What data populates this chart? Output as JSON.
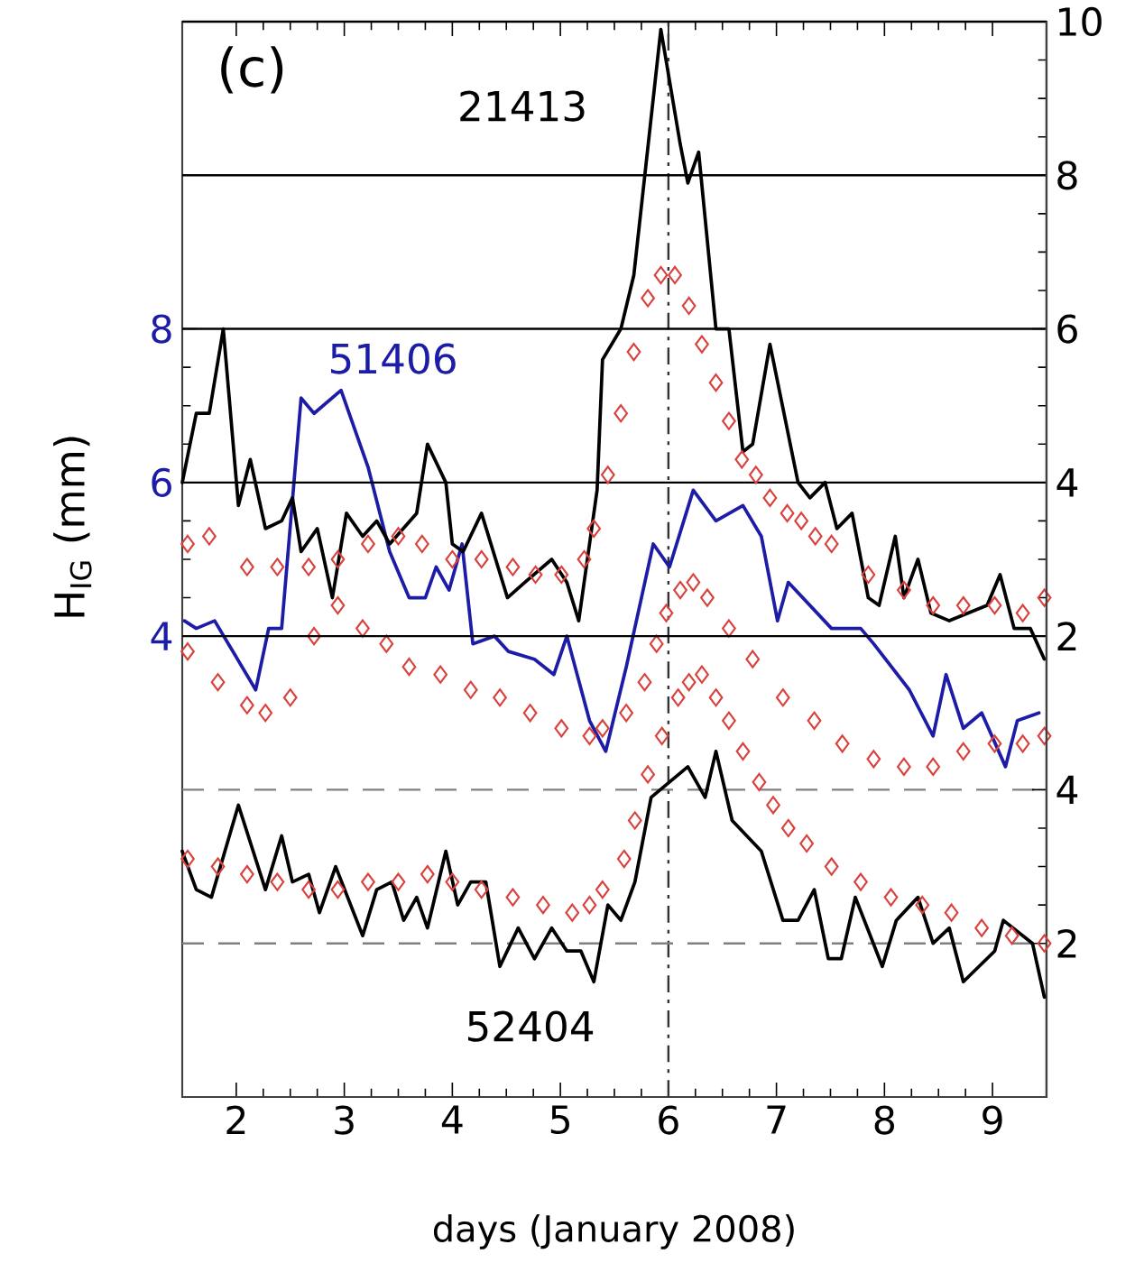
{
  "chart_data": {
    "type": "line",
    "xlabel": "days (January 2008)",
    "ylabel": "H$_{IG}$ (mm)",
    "annotations": [
      "(c)"
    ],
    "xlim": [
      1.5,
      9.5
    ],
    "xticks": [
      2,
      3,
      4,
      5,
      6,
      7,
      8,
      9
    ],
    "ylim": [
      -2,
      12
    ],
    "yticks": [
      4,
      6,
      8
    ],
    "y2lim": [
      -4,
      10
    ],
    "y2ticks": [
      2,
      4,
      6,
      8,
      10
    ],
    "y3lim": [
      0,
      14
    ],
    "y3ticks": [
      2,
      4
    ],
    "grid": "y",
    "ref_lines": [
      {
        "axis": "x",
        "value": 6,
        "color": "#333333",
        "line_style": "dashdot"
      }
    ],
    "series": [
      {
        "type": "scatter",
        "marker": "diamond",
        "axis": "y2",
        "color": "#d9413c",
        "x": [
          1.55,
          1.75,
          2.1,
          2.38,
          2.67,
          2.94,
          3.22,
          3.5,
          3.72,
          4.0,
          4.27,
          4.56,
          4.77,
          5.01,
          5.22,
          5.31,
          5.44,
          5.56,
          5.68,
          5.81,
          5.93,
          6.06,
          6.19,
          6.31,
          6.44,
          6.56,
          6.68,
          6.81,
          6.94,
          7.1,
          7.23,
          7.36,
          7.51,
          7.85,
          8.18,
          8.45,
          8.73,
          9.02,
          9.28,
          9.48
        ],
        "values": [
          3.2,
          3.3,
          2.9,
          2.9,
          2.9,
          3.0,
          3.2,
          3.3,
          3.2,
          3.0,
          3.0,
          2.9,
          2.8,
          2.8,
          3.0,
          3.4,
          4.1,
          4.9,
          5.7,
          6.4,
          6.7,
          6.7,
          6.3,
          5.8,
          5.3,
          4.8,
          4.3,
          4.1,
          3.8,
          3.6,
          3.5,
          3.3,
          3.2,
          2.8,
          2.6,
          2.4,
          2.4,
          2.4,
          2.3,
          2.5
        ]
      },
      {
        "type": "scatter",
        "marker": "diamond",
        "axis": "y",
        "color": "#d9413c",
        "x": [
          1.55,
          1.83,
          2.1,
          2.27,
          2.5,
          2.72,
          2.94,
          3.17,
          3.39,
          3.6,
          3.89,
          4.17,
          4.44,
          4.72,
          5.01,
          5.27,
          5.39,
          5.61,
          5.78,
          5.89,
          5.98,
          6.11,
          6.23,
          6.36,
          6.56,
          6.78,
          7.06,
          7.35,
          7.61,
          7.9,
          8.18,
          8.45,
          8.73,
          9.02,
          9.28,
          9.48
        ],
        "values": [
          3.8,
          3.4,
          3.1,
          3.0,
          3.2,
          4.0,
          4.4,
          4.1,
          3.9,
          3.6,
          3.5,
          3.3,
          3.2,
          3.0,
          2.8,
          2.7,
          2.8,
          3.0,
          3.4,
          3.9,
          4.3,
          4.6,
          4.7,
          4.5,
          4.1,
          3.7,
          3.2,
          2.9,
          2.6,
          2.4,
          2.3,
          2.3,
          2.5,
          2.6,
          2.6,
          2.7
        ]
      },
      {
        "type": "scatter",
        "marker": "diamond",
        "axis": "y3",
        "color": "#d9413c",
        "x": [
          1.55,
          1.83,
          2.1,
          2.38,
          2.67,
          2.94,
          3.22,
          3.5,
          3.77,
          4.0,
          4.27,
          4.56,
          4.84,
          5.11,
          5.27,
          5.39,
          5.59,
          5.69,
          5.81,
          5.94,
          6.09,
          6.19,
          6.31,
          6.44,
          6.56,
          6.69,
          6.84,
          6.97,
          7.11,
          7.28,
          7.51,
          7.78,
          8.06,
          8.35,
          8.62,
          8.9,
          9.18,
          9.48
        ],
        "values": [
          3.1,
          3.0,
          2.9,
          2.8,
          2.7,
          2.7,
          2.8,
          2.8,
          2.9,
          2.8,
          2.7,
          2.6,
          2.5,
          2.4,
          2.5,
          2.7,
          3.1,
          3.6,
          4.2,
          4.7,
          5.2,
          5.4,
          5.5,
          5.2,
          4.9,
          4.5,
          4.1,
          3.8,
          3.5,
          3.3,
          3.0,
          2.8,
          2.6,
          2.5,
          2.4,
          2.2,
          2.1,
          2.0
        ]
      },
      {
        "marker": "none",
        "axis": "y2",
        "name": "21413",
        "color": "#000000",
        "x": [
          1.5,
          1.63,
          1.75,
          1.88,
          2.02,
          2.13,
          2.27,
          2.42,
          2.52,
          2.6,
          2.75,
          2.89,
          3.02,
          3.17,
          3.3,
          3.42,
          3.67,
          3.77,
          3.94,
          4.0,
          4.1,
          4.27,
          4.51,
          4.67,
          4.92,
          5.06,
          5.17,
          5.34,
          5.39,
          5.56,
          5.68,
          5.93,
          6.11,
          6.18,
          6.28,
          6.44,
          6.56,
          6.69,
          6.78,
          6.94,
          7.2,
          7.31,
          7.45,
          7.56,
          7.7,
          7.85,
          7.95,
          8.1,
          8.18,
          8.31,
          8.43,
          8.6,
          8.95,
          9.07,
          9.2,
          9.35,
          9.48
        ],
        "values": [
          4.0,
          4.9,
          4.9,
          6.0,
          3.7,
          4.3,
          3.4,
          3.5,
          3.8,
          3.1,
          3.4,
          2.5,
          3.6,
          3.3,
          3.5,
          3.2,
          3.6,
          4.5,
          4.0,
          3.2,
          3.1,
          3.6,
          2.5,
          2.7,
          3.0,
          2.7,
          2.2,
          3.9,
          5.6,
          6.0,
          6.7,
          9.9,
          8.4,
          7.9,
          8.3,
          6.0,
          6.0,
          4.4,
          4.5,
          5.8,
          4.0,
          3.8,
          4.0,
          3.4,
          3.6,
          2.5,
          2.4,
          3.3,
          2.5,
          3.0,
          2.3,
          2.2,
          2.4,
          2.8,
          2.1,
          2.1,
          1.7
        ]
      },
      {
        "marker": "none",
        "axis": "y",
        "name": "51406",
        "color": "#1c1ca6",
        "x": [
          1.52,
          1.63,
          1.8,
          2.18,
          2.3,
          2.42,
          2.6,
          2.72,
          2.97,
          3.22,
          3.42,
          3.6,
          3.75,
          3.85,
          3.97,
          4.09,
          4.19,
          4.39,
          4.52,
          4.76,
          4.94,
          5.06,
          5.27,
          5.42,
          5.61,
          5.86,
          6.01,
          6.23,
          6.44,
          6.69,
          6.86,
          7.01,
          7.11,
          7.51,
          7.78,
          7.9,
          8.23,
          8.45,
          8.57,
          8.73,
          8.9,
          9.12,
          9.23,
          9.43
        ],
        "values": [
          4.2,
          4.1,
          4.2,
          3.3,
          4.1,
          4.1,
          7.1,
          6.9,
          7.2,
          6.2,
          5.1,
          4.5,
          4.5,
          4.9,
          4.6,
          5.2,
          3.9,
          4.0,
          3.8,
          3.7,
          3.5,
          4.0,
          2.9,
          2.5,
          3.6,
          5.2,
          4.9,
          5.9,
          5.5,
          5.7,
          5.3,
          4.2,
          4.7,
          4.1,
          4.1,
          3.9,
          3.3,
          2.7,
          3.5,
          2.8,
          3.0,
          2.3,
          2.9,
          3.0
        ]
      },
      {
        "marker": "none",
        "axis": "y3",
        "name": "52404",
        "color": "#000000",
        "x": [
          1.5,
          1.63,
          1.77,
          2.02,
          2.27,
          2.42,
          2.52,
          2.67,
          2.77,
          2.92,
          3.17,
          3.3,
          3.44,
          3.55,
          3.67,
          3.77,
          3.94,
          4.05,
          4.17,
          4.31,
          4.44,
          4.61,
          4.76,
          4.92,
          5.06,
          5.19,
          5.31,
          5.44,
          5.56,
          5.69,
          5.84,
          6.18,
          6.34,
          6.44,
          6.59,
          6.86,
          7.06,
          7.2,
          7.35,
          7.48,
          7.6,
          7.73,
          7.98,
          8.11,
          8.31,
          8.45,
          8.6,
          8.73,
          9.02,
          9.1,
          9.37,
          9.48
        ],
        "values": [
          3.2,
          2.7,
          2.6,
          3.8,
          2.7,
          3.4,
          2.8,
          2.9,
          2.4,
          3.0,
          2.1,
          2.7,
          2.8,
          2.3,
          2.6,
          2.2,
          3.2,
          2.5,
          2.8,
          2.8,
          1.7,
          2.2,
          1.8,
          2.2,
          1.9,
          1.9,
          1.5,
          2.5,
          2.3,
          2.8,
          3.9,
          4.3,
          3.9,
          4.5,
          3.6,
          3.2,
          2.3,
          2.3,
          2.7,
          1.8,
          1.8,
          2.6,
          1.7,
          2.3,
          2.6,
          2.0,
          2.2,
          1.5,
          1.9,
          2.3,
          2.0,
          1.3
        ]
      }
    ]
  }
}
